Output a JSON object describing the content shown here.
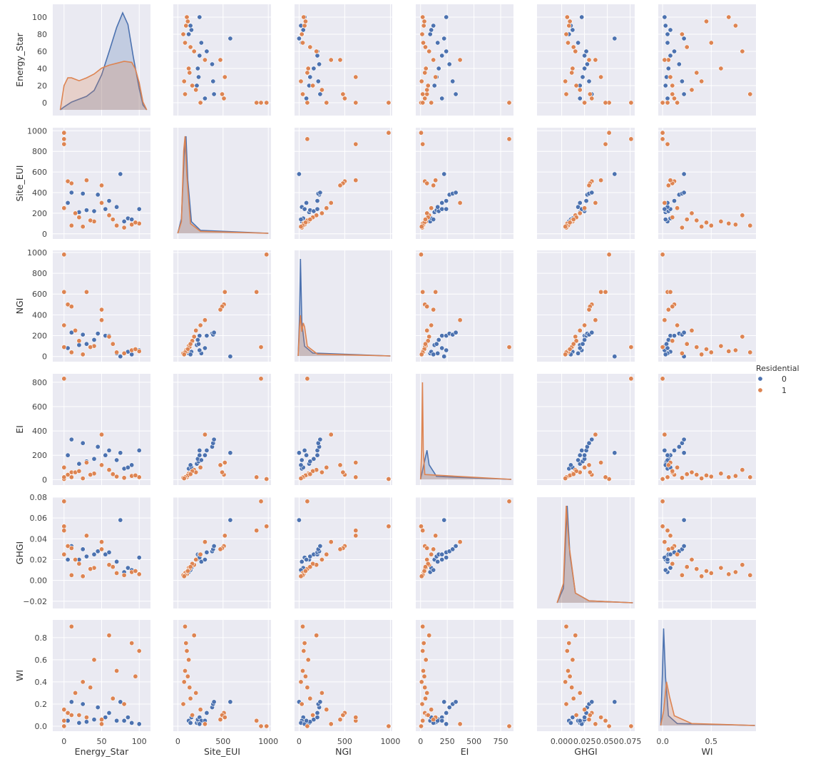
{
  "chart_data": {
    "type": "scatter",
    "subtype": "pairplot",
    "grid": true,
    "diagonal": "kde",
    "variables": [
      "Energy_Star",
      "Site_EUI",
      "NGI",
      "EI",
      "GHGI",
      "WI"
    ],
    "axes": {
      "Energy_Star": {
        "range": [
          -15,
          115
        ],
        "ticks": [
          0,
          50,
          100
        ],
        "tick_labels": [
          "0",
          "50",
          "100"
        ],
        "row_ticks": [
          0,
          20,
          40,
          60,
          80,
          100
        ],
        "row_tick_labels": [
          "0",
          "20",
          "40",
          "60",
          "80",
          "100"
        ]
      },
      "Site_EUI": {
        "range": [
          -50,
          1030
        ],
        "ticks": [
          0,
          500,
          1000
        ],
        "tick_labels": [
          "0",
          "500",
          "1000"
        ],
        "row_ticks": [
          0,
          200,
          400,
          600,
          800,
          1000
        ],
        "row_tick_labels": [
          "0",
          "200",
          "400",
          "600",
          "800",
          "1000"
        ]
      },
      "NGI": {
        "range": [
          -50,
          1020
        ],
        "ticks": [
          0,
          500,
          1000
        ],
        "tick_labels": [
          "0",
          "500",
          "1000"
        ],
        "row_ticks": [
          0,
          200,
          400,
          600,
          800,
          1000
        ],
        "row_tick_labels": [
          "0",
          "200",
          "400",
          "600",
          "800",
          "1000"
        ]
      },
      "EI": {
        "range": [
          -45,
          870
        ],
        "ticks": [
          0,
          250,
          500,
          750
        ],
        "tick_labels": [
          "0",
          "250",
          "500",
          "750"
        ],
        "row_ticks": [
          0,
          200,
          400,
          600,
          800
        ],
        "row_tick_labels": [
          "0",
          "200",
          "400",
          "600",
          "800"
        ]
      },
      "GHGI": {
        "range": [
          -0.027,
          0.08
        ],
        "ticks": [
          0.0,
          0.025,
          0.05,
          0.075
        ],
        "tick_labels": [
          "0.000",
          "0.025",
          "0.050",
          "0.075"
        ],
        "row_ticks": [
          -0.02,
          0.0,
          0.02,
          0.04,
          0.06,
          0.08
        ],
        "row_tick_labels": [
          "−0.02",
          "0.00",
          "0.02",
          "0.04",
          "0.06",
          "0.08"
        ]
      },
      "WI": {
        "range": [
          -0.045,
          0.96
        ],
        "ticks": [
          0.0,
          0.5
        ],
        "tick_labels": [
          "0.0",
          "0.5"
        ],
        "row_ticks": [
          0.0,
          0.2,
          0.4,
          0.6,
          0.8
        ],
        "row_tick_labels": [
          "0.0",
          "0.2",
          "0.4",
          "0.6",
          "0.8"
        ]
      }
    },
    "legend": {
      "title": "Residential",
      "placement": "right",
      "entries": [
        {
          "label": "0",
          "color": "#4c72b0"
        },
        {
          "label": "1",
          "color": "#dd8452"
        }
      ]
    },
    "series": [
      {
        "name": "0",
        "color": "#4c72b0",
        "points": [
          [
            80,
            120,
            30,
            90,
            0.008,
            0.05
          ],
          [
            85,
            150,
            45,
            100,
            0.012,
            0.08
          ],
          [
            20,
            210,
            110,
            130,
            0.02,
            0.03
          ],
          [
            30,
            230,
            120,
            150,
            0.023,
            0.04
          ],
          [
            40,
            220,
            160,
            170,
            0.025,
            0.06
          ],
          [
            55,
            240,
            200,
            200,
            0.025,
            0.08
          ],
          [
            60,
            320,
            200,
            240,
            0.027,
            0.12
          ],
          [
            45,
            380,
            220,
            270,
            0.028,
            0.17
          ],
          [
            25,
            390,
            210,
            300,
            0.03,
            0.2
          ],
          [
            10,
            400,
            230,
            330,
            0.033,
            0.22
          ],
          [
            75,
            580,
            0,
            220,
            0.058,
            0.22
          ],
          [
            70,
            260,
            30,
            160,
            0.018,
            0.05
          ],
          [
            90,
            140,
            20,
            120,
            0.01,
            0.03
          ],
          [
            100,
            240,
            60,
            240,
            0.022,
            0.02
          ],
          [
            5,
            300,
            80,
            200,
            0.02,
            0.05
          ]
        ]
      },
      {
        "name": "1",
        "color": "#dd8452",
        "points": [
          [
            0,
            980,
            980,
            5,
            0.052,
            0.0
          ],
          [
            0,
            920,
            90,
            830,
            0.076,
            0.0
          ],
          [
            0,
            870,
            620,
            20,
            0.048,
            0.05
          ],
          [
            5,
            510,
            500,
            40,
            0.033,
            0.12
          ],
          [
            10,
            490,
            480,
            60,
            0.031,
            0.1
          ],
          [
            30,
            520,
            620,
            140,
            0.043,
            0.08
          ],
          [
            50,
            470,
            450,
            120,
            0.03,
            0.06
          ],
          [
            60,
            180,
            190,
            80,
            0.015,
            0.82
          ],
          [
            40,
            120,
            100,
            50,
            0.012,
            0.6
          ],
          [
            90,
            90,
            60,
            30,
            0.008,
            0.75
          ],
          [
            100,
            100,
            50,
            20,
            0.006,
            0.68
          ],
          [
            15,
            200,
            250,
            60,
            0.02,
            0.3
          ],
          [
            70,
            80,
            40,
            25,
            0.007,
            0.5
          ],
          [
            35,
            130,
            90,
            40,
            0.011,
            0.35
          ],
          [
            80,
            60,
            30,
            15,
            0.005,
            0.2
          ],
          [
            20,
            160,
            150,
            70,
            0.016,
            0.1
          ],
          [
            95,
            110,
            70,
            35,
            0.009,
            0.45
          ],
          [
            65,
            140,
            120,
            45,
            0.013,
            0.25
          ],
          [
            0,
            250,
            300,
            100,
            0.025,
            0.15
          ],
          [
            50,
            300,
            350,
            370,
            0.037,
            0.02
          ],
          [
            10,
            80,
            40,
            20,
            0.005,
            0.9
          ],
          [
            25,
            70,
            20,
            10,
            0.004,
            0.4
          ]
        ]
      }
    ],
    "kde": [
      {
        "name": "0",
        "color": "#4c72b0",
        "Energy_Star": [
          [
            -5,
            0.0
          ],
          [
            0,
            0.03
          ],
          [
            10,
            0.08
          ],
          [
            20,
            0.11
          ],
          [
            30,
            0.14
          ],
          [
            40,
            0.2
          ],
          [
            50,
            0.36
          ],
          [
            60,
            0.6
          ],
          [
            70,
            0.85
          ],
          [
            78,
            1.0
          ],
          [
            85,
            0.88
          ],
          [
            92,
            0.55
          ],
          [
            100,
            0.22
          ],
          [
            105,
            0.05
          ],
          [
            110,
            0.0
          ]
        ],
        "Site_EUI": [
          [
            0,
            0.0
          ],
          [
            40,
            0.15
          ],
          [
            70,
            0.8
          ],
          [
            90,
            1.0
          ],
          [
            110,
            0.55
          ],
          [
            150,
            0.12
          ],
          [
            250,
            0.03
          ],
          [
            1000,
            0.0
          ]
        ],
        "NGI": [
          [
            -10,
            0.0
          ],
          [
            5,
            0.4
          ],
          [
            15,
            1.0
          ],
          [
            30,
            0.35
          ],
          [
            60,
            0.1
          ],
          [
            150,
            0.03
          ],
          [
            1000,
            0.0
          ]
        ],
        "EI": [
          [
            0,
            0.0
          ],
          [
            40,
            0.2
          ],
          [
            60,
            0.3
          ],
          [
            80,
            0.15
          ],
          [
            150,
            0.03
          ],
          [
            850,
            0.0
          ]
        ],
        "GHGI": [
          [
            -0.005,
            0.0
          ],
          [
            0.002,
            0.15
          ],
          [
            0.006,
            1.0
          ],
          [
            0.009,
            0.5
          ],
          [
            0.015,
            0.1
          ],
          [
            0.03,
            0.02
          ],
          [
            0.078,
            0.0
          ]
        ],
        "WI": [
          [
            -0.02,
            0.0
          ],
          [
            0.0,
            0.6
          ],
          [
            0.01,
            1.0
          ],
          [
            0.03,
            0.5
          ],
          [
            0.06,
            0.1
          ],
          [
            0.15,
            0.02
          ],
          [
            0.95,
            0.0
          ]
        ]
      },
      {
        "name": "1",
        "color": "#dd8452",
        "Energy_Star": [
          [
            -5,
            0.0
          ],
          [
            0,
            0.25
          ],
          [
            5,
            0.33
          ],
          [
            10,
            0.33
          ],
          [
            20,
            0.3
          ],
          [
            30,
            0.33
          ],
          [
            40,
            0.37
          ],
          [
            50,
            0.43
          ],
          [
            60,
            0.46
          ],
          [
            70,
            0.48
          ],
          [
            80,
            0.5
          ],
          [
            90,
            0.49
          ],
          [
            95,
            0.42
          ],
          [
            100,
            0.28
          ],
          [
            105,
            0.08
          ],
          [
            110,
            0.0
          ]
        ],
        "Site_EUI": [
          [
            0,
            0.0
          ],
          [
            40,
            0.12
          ],
          [
            65,
            0.85
          ],
          [
            80,
            1.0
          ],
          [
            100,
            0.6
          ],
          [
            140,
            0.1
          ],
          [
            250,
            0.02
          ],
          [
            1000,
            0.0
          ]
        ],
        "NGI": [
          [
            -10,
            0.0
          ],
          [
            5,
            0.3
          ],
          [
            15,
            0.42
          ],
          [
            30,
            0.25
          ],
          [
            45,
            0.34
          ],
          [
            60,
            0.3
          ],
          [
            90,
            0.1
          ],
          [
            200,
            0.02
          ],
          [
            1000,
            0.0
          ]
        ],
        "EI": [
          [
            0,
            0.0
          ],
          [
            10,
            0.3
          ],
          [
            18,
            1.0
          ],
          [
            25,
            0.3
          ],
          [
            40,
            0.05
          ],
          [
            850,
            0.0
          ]
        ],
        "GHGI": [
          [
            -0.005,
            0.0
          ],
          [
            0.002,
            0.2
          ],
          [
            0.005,
            1.0
          ],
          [
            0.008,
            0.6
          ],
          [
            0.015,
            0.1
          ],
          [
            0.03,
            0.02
          ],
          [
            0.078,
            0.0
          ]
        ],
        "WI": [
          [
            -0.02,
            0.0
          ],
          [
            0.01,
            0.15
          ],
          [
            0.04,
            0.45
          ],
          [
            0.07,
            0.3
          ],
          [
            0.12,
            0.1
          ],
          [
            0.3,
            0.02
          ],
          [
            0.95,
            0.0
          ]
        ]
      }
    ]
  }
}
